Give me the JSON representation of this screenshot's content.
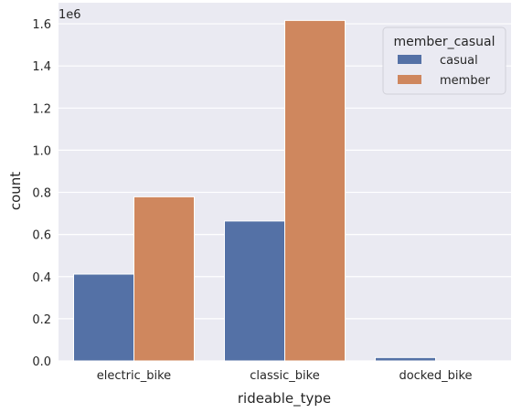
{
  "chart_data": {
    "type": "bar",
    "categories": [
      "electric_bike",
      "classic_bike",
      "docked_bike"
    ],
    "series": [
      {
        "name": "casual",
        "values": [
          412000,
          664000,
          16000
        ],
        "color": "#5471a6"
      },
      {
        "name": "member",
        "values": [
          779000,
          1616000,
          0
        ],
        "color": "#cf875e"
      }
    ],
    "xlabel": "rideable_type",
    "ylabel": "count",
    "y_scale_label": "1e6",
    "y_tick_labels": [
      "0.0",
      "0.2",
      "0.4",
      "0.6",
      "0.8",
      "1.0",
      "1.2",
      "1.4",
      "1.6"
    ],
    "ylim": [
      0,
      1700000
    ],
    "grid": true,
    "legend_title": "member_casual",
    "legend_position": "top-right",
    "background_color": "#eaeaf2",
    "grid_color": "#ffffff"
  }
}
